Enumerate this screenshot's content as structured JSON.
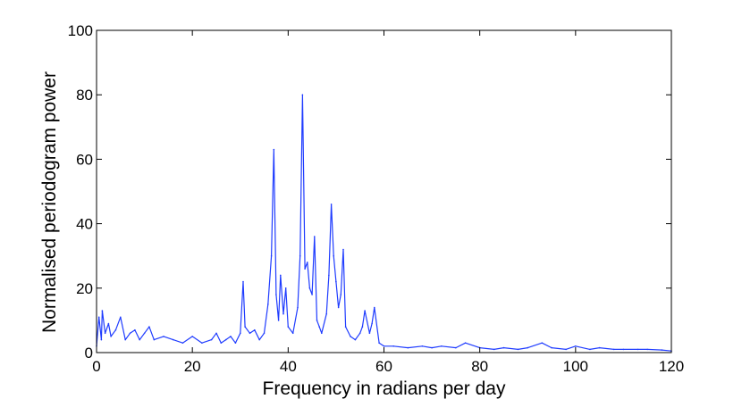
{
  "chart_data": {
    "type": "line",
    "title": "",
    "xlabel": "Frequency in radians per day",
    "ylabel": "Normalised periodogram power",
    "xlim": [
      0,
      120
    ],
    "ylim": [
      0,
      100
    ],
    "x_ticks": [
      0,
      20,
      40,
      60,
      80,
      100,
      120
    ],
    "y_ticks": [
      0,
      20,
      40,
      60,
      80,
      100
    ],
    "grid": false,
    "legend": "none",
    "series": [
      {
        "color": "#1f3cff",
        "x": [
          0,
          0.5,
          1,
          1.2,
          1.8,
          2.5,
          3,
          4,
          5,
          6,
          7,
          8,
          9,
          10,
          11,
          12,
          14,
          16,
          18,
          20,
          22,
          24,
          25,
          26,
          27,
          28,
          29,
          30,
          30.6,
          31,
          32,
          33,
          34,
          35,
          35.8,
          36.5,
          37,
          37.5,
          38,
          38.4,
          39,
          39.5,
          40,
          41,
          42,
          42.5,
          43,
          43.5,
          44,
          44.5,
          45,
          45.5,
          46,
          46.5,
          47,
          48,
          48.5,
          49,
          49.5,
          50,
          50.5,
          51,
          51.5,
          52,
          53,
          54,
          55,
          55.5,
          56,
          57,
          57.5,
          58,
          59,
          60,
          62,
          65,
          68,
          70,
          72,
          75,
          77,
          80,
          83,
          85,
          88,
          90,
          93,
          95,
          98,
          100,
          103,
          105,
          108,
          110,
          113,
          115,
          118,
          120
        ],
        "y": [
          2,
          11,
          4,
          13,
          6,
          9,
          5,
          7,
          11,
          4,
          6,
          7,
          4,
          6,
          8,
          4,
          5,
          4,
          3,
          5,
          3,
          4,
          6,
          3,
          4,
          5,
          3,
          6,
          22,
          8,
          6,
          7,
          4,
          6,
          15,
          30,
          63,
          18,
          10,
          24,
          12,
          20,
          8,
          6,
          14,
          30,
          80,
          26,
          28,
          20,
          18,
          36,
          10,
          8,
          6,
          12,
          24,
          46,
          30,
          22,
          14,
          18,
          32,
          8,
          5,
          4,
          6,
          8,
          13,
          6,
          9,
          14,
          3,
          2,
          2,
          1.5,
          2,
          1.5,
          2,
          1.5,
          3,
          1.5,
          1,
          1.5,
          1,
          1.5,
          3,
          1.5,
          1,
          2,
          1,
          1.5,
          1,
          1,
          1,
          1,
          0.8,
          0.5
        ]
      }
    ]
  }
}
